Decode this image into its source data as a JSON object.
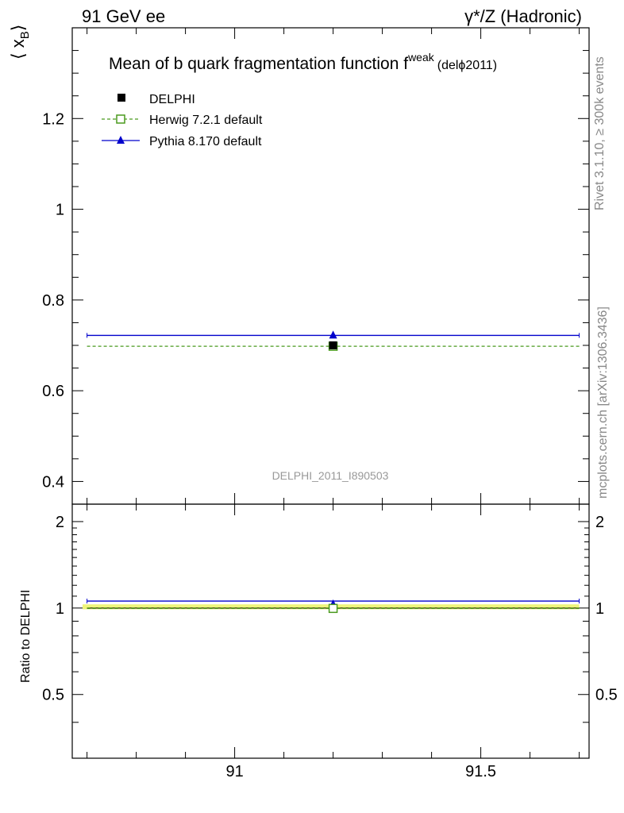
{
  "header": {
    "left": "91 GeV ee",
    "right": "γ*/Z (Hadronic)"
  },
  "side_labels": {
    "rivet": "Rivet 3.1.10, ≥ 300k events",
    "mcplots": "mcplots.cern.ch [arXiv:1306.3436]"
  },
  "chart_data": [
    {
      "type": "scatter",
      "title": "Mean of b quark fragmentation function f",
      "title_superscript": "weak",
      "title_suffix": "(delϕ2011)",
      "ylabel_main": "⟨ x",
      "ylabel_sub": "B",
      "ylabel_close": "⟩",
      "watermark": "DELPHI_2011_I890503",
      "xlim": [
        90.67,
        91.72
      ],
      "ylim": [
        0.35,
        1.4
      ],
      "x_ticks": [
        "91",
        "91.5"
      ],
      "y_ticks": [
        "0.4",
        "0.6",
        "0.8",
        "1",
        "1.2"
      ],
      "legend_position": "top-left",
      "series": [
        {
          "name": "DELPHI",
          "marker": "filled-square",
          "color": "#000000",
          "x": [
            91.2
          ],
          "y": [
            0.7
          ],
          "xerr": [
            null,
            null
          ]
        },
        {
          "name": "Herwig 7.2.1 default",
          "marker": "open-square",
          "line": "dashed",
          "color": "#4a9a1e",
          "x": [
            91.2
          ],
          "y": [
            0.698
          ],
          "xrange": [
            90.7,
            91.7
          ]
        },
        {
          "name": "Pythia 8.170 default",
          "marker": "triangle",
          "line": "solid",
          "color": "#0000cc",
          "x": [
            91.2
          ],
          "y": [
            0.722
          ],
          "xrange": [
            90.7,
            91.7
          ]
        }
      ]
    },
    {
      "type": "scatter",
      "ylabel": "Ratio to DELPHI",
      "xlim": [
        90.67,
        91.72
      ],
      "ylim": [
        0.3,
        2.3
      ],
      "x_ticks": [
        "91",
        "91.5"
      ],
      "y_ticks": [
        "0.5",
        "1",
        "2"
      ],
      "band": {
        "lower": 0.99,
        "upper": 1.01,
        "color": "#eef57a"
      },
      "series": [
        {
          "name": "Herwig 7.2.1 default",
          "x": [
            91.2
          ],
          "y": [
            0.997
          ],
          "xrange": [
            90.7,
            91.7
          ]
        },
        {
          "name": "Pythia 8.170 default",
          "x": [
            91.2
          ],
          "y": [
            1.031
          ],
          "xrange": [
            90.7,
            91.7
          ]
        }
      ]
    }
  ]
}
